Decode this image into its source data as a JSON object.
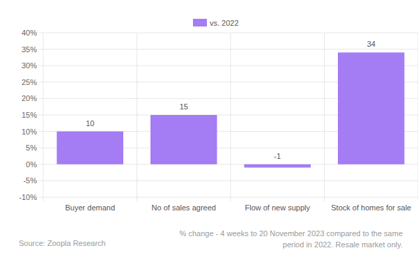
{
  "chart_data": {
    "type": "bar",
    "categories": [
      "Buyer demand",
      "No of sales agreed",
      "Flow of new supply",
      "Stock of homes for sale"
    ],
    "series": [
      {
        "name": "vs. 2022",
        "color": "#a47cf4",
        "values": [
          10,
          15,
          -1,
          34
        ]
      }
    ],
    "ylim": [
      -10,
      40
    ],
    "yticks": [
      {
        "value": -10,
        "label": "-10%"
      },
      {
        "value": -5,
        "label": "-5%"
      },
      {
        "value": 0,
        "label": "0%"
      },
      {
        "value": 5,
        "label": "5%"
      },
      {
        "value": 10,
        "label": "10%"
      },
      {
        "value": 15,
        "label": "15%"
      },
      {
        "value": 20,
        "label": "20%"
      },
      {
        "value": 25,
        "label": "25%"
      },
      {
        "value": 30,
        "label": "30%"
      },
      {
        "value": 35,
        "label": "35%"
      },
      {
        "value": 40,
        "label": "40%"
      }
    ],
    "grid": true,
    "legend": "top",
    "data_labels": true,
    "note": "% change - 4 weeks to 20 November 2023 compared to the same period in 2022. Resale market only.",
    "source": "Source: Zoopla Research"
  }
}
